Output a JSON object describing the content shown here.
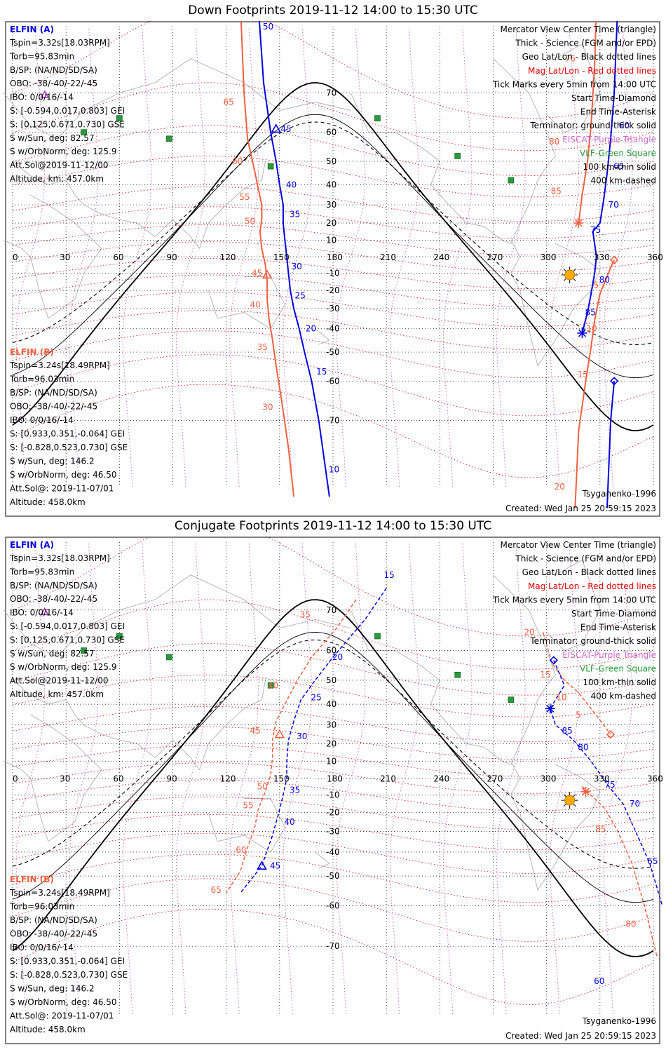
{
  "colors": {
    "elfin_a": "#0000e0",
    "elfin_b": "#f06040",
    "mag_grid": "#e00000",
    "geo_grid": "#000000",
    "meridian": "#cc44cc",
    "station": "#2a9a3a",
    "sun": "#ffaa00",
    "coast": "#b0b0b0"
  },
  "icons": {
    "center_time": "triangle-icon",
    "start_time": "diamond-icon",
    "end_time": "asterisk-icon",
    "eiscat": "purple-triangle-icon",
    "vlf": "green-square-icon",
    "sun": "sun-icon"
  },
  "panels": [
    {
      "id": "down",
      "title": "Down Footprints 2019-11-12 14:00 to 15:30 UTC",
      "elfin_a": {
        "label": "ELFIN (A)",
        "lines": [
          "Tspin=3.32s[18.03RPM]",
          "Torb=95.83min",
          "B/SP: (NA/ND/SD/SA)",
          "OBO: -38/-40/-22/-45",
          "IBO: 0/0/16/-14",
          "S: [-0.594,0.017,0.803] GEI",
          "S: [0.125,0.671,0.730] GSE",
          "S w/Sun, deg: 82.57",
          "S w/OrbNorm, deg: 125.9",
          "Att.Sol@2019-11-12/00",
          "Altitude, km: 457.0km"
        ]
      },
      "elfin_b": {
        "label": "ELFIN (B)",
        "lines": [
          "Tspin=3.24s[18.49RPM]",
          "Torb=96.03min",
          "B/SP: (NA/ND/SD/SA)",
          "OBO: -38/-40/-22/-45",
          "IBO: 0/0/16/-14",
          "S: [0.933,0.351,-0.064] GEI",
          "S: [-0.828,0.523,0.730] GSE",
          "S w/Sun, deg: 146.2",
          "S w/OrbNorm, deg: 46.50",
          "Att.Sol@: 2019-11-07/01",
          "Altitude: 458.0km"
        ]
      },
      "legend": [
        "Mercator View Center Time (triangle)",
        "Thick - Science (FGM and/or EPD)",
        "Geo Lat/Lon - Black dotted lines",
        "Mag Lat/Lon - Red dotted lines",
        "Tick Marks every 5min from 14:00 UTC",
        "Start Time-Diamond",
        "End Time-Asterisk",
        "Terminator: ground-thick solid",
        "EISCAT-Purple Triangle",
        "VLF-Green Square",
        "100 km-thin solid",
        "400 km-dashed"
      ],
      "model": "Tsyganenko-1996",
      "created": "Created: Wed Jan 25 20:59:15 2023",
      "lon_ticks": [
        "0",
        "30",
        "60",
        "90",
        "120",
        "150",
        "180",
        "210",
        "240",
        "270",
        "300",
        "330",
        "360"
      ],
      "lat_ticks": [
        "70",
        "60",
        "50",
        "40",
        "30",
        "20",
        "10",
        "0",
        "-10",
        "-20",
        "-30",
        "-40",
        "-50",
        "-60",
        "-70"
      ],
      "a_ticks": [
        {
          "t": "50",
          "lon": 139,
          "lat": 80
        },
        {
          "t": "45",
          "lon": 149,
          "lat": 61
        },
        {
          "t": "40",
          "lon": 152,
          "lat": 40
        },
        {
          "t": "35",
          "lon": 154,
          "lat": 25
        },
        {
          "t": "30",
          "lon": 155,
          "lat": -6
        },
        {
          "t": "25",
          "lon": 157,
          "lat": -23
        },
        {
          "t": "20",
          "lon": 163,
          "lat": -40
        },
        {
          "t": "15",
          "lon": 169,
          "lat": -57
        },
        {
          "t": "10",
          "lon": 176,
          "lat": -78
        },
        {
          "t": "60",
          "lon": 339,
          "lat": 62
        },
        {
          "t": "65",
          "lon": 336,
          "lat": 48
        },
        {
          "t": "70",
          "lon": 333,
          "lat": 30
        },
        {
          "t": "75",
          "lon": 323,
          "lat": 16
        },
        {
          "t": "80",
          "lon": 328,
          "lat": -14
        },
        {
          "t": "85",
          "lon": 320,
          "lat": -32
        }
      ],
      "b_ticks": [
        {
          "t": "65",
          "lon": 127,
          "lat": 68
        },
        {
          "t": "60",
          "lon": 132,
          "lat": 50
        },
        {
          "t": "55",
          "lon": 136,
          "lat": 34
        },
        {
          "t": "50",
          "lon": 139,
          "lat": 21
        },
        {
          "t": "45",
          "lon": 143,
          "lat": -10
        },
        {
          "t": "40",
          "lon": 142,
          "lat": -28
        },
        {
          "t": "35",
          "lon": 146,
          "lat": -48
        },
        {
          "t": "30",
          "lon": 149,
          "lat": -67
        },
        {
          "t": "75",
          "lon": 319,
          "lat": 76
        },
        {
          "t": "80",
          "lon": 310,
          "lat": 57
        },
        {
          "t": "85",
          "lon": 311,
          "lat": 37
        },
        {
          "t": "5",
          "lon": 335,
          "lat": -17
        },
        {
          "t": "10",
          "lon": 331,
          "lat": -40
        },
        {
          "t": "15",
          "lon": 326,
          "lat": -58
        },
        {
          "t": "20",
          "lon": 313,
          "lat": -80
        }
      ]
    },
    {
      "id": "conjugate",
      "title": "Conjugate Footprints 2019-11-12 14:00 to 15:30 UTC",
      "elfin_a": {
        "label": "ELFIN (A)",
        "lines": [
          "Tspin=3.32s[18.03RPM]",
          "Torb=95.83min",
          "B/SP: (NA/ND/SD/SA)",
          "OBO: -38/-40/-22/-45",
          "IBO: 0/0/16/-14",
          "S: [-0.594,0.017,0.803] GEI",
          "S: [0.125,0.671,0.730] GSE",
          "S w/Sun, deg: 82.57",
          "S w/OrbNorm, deg: 125.9",
          "Att.Sol@2019-11-12/00",
          "Altitude, km: 457.0km"
        ]
      },
      "elfin_b": {
        "label": "ELFIN (B)",
        "lines": [
          "Tspin=3.24s[18.49RPM]",
          "Torb=96.03min",
          "B/SP: (NA/ND/SD/SA)",
          "OBO: -38/-40/-22/-45",
          "IBO: 0/0/16/-14",
          "S: [0.933,0.351,-0.064] GEI",
          "S: [-0.828,0.523,0.730] GSE",
          "S w/Sun, deg: 146.2",
          "S w/OrbNorm, deg: 46.50",
          "Att.Sol@: 2019-11-07/01",
          "Altitude: 458.0km"
        ]
      },
      "legend": [
        "Mercator View Center Time (triangle)",
        "Thick - Science (FGM and/or EPD)",
        "Geo Lat/Lon - Black dotted lines",
        "Mag Lat/Lon - Red dotted lines",
        "Tick Marks every 5min from 14:00 UTC",
        "Start Time-Diamond",
        "End Time-Asterisk",
        "Terminator: ground-thick solid",
        "EISCAT-Purple Triangle",
        "VLF-Green Square",
        "100 km-thin solid",
        "400 km-dashed"
      ],
      "model": "Tsyganenko-1996",
      "created": "Created: Wed Jan 25 20:59:15 2023",
      "lon_ticks": [
        "0",
        "30",
        "60",
        "90",
        "120",
        "150",
        "180",
        "210",
        "240",
        "270",
        "300",
        "330",
        "360"
      ],
      "lat_ticks": [
        "70",
        "60",
        "50",
        "40",
        "30",
        "20",
        "10",
        "0",
        "-10",
        "-20",
        "-30",
        "-40",
        "-50",
        "-60",
        "-70"
      ],
      "a_ticks": [
        {
          "t": "15",
          "lon": 207,
          "lat": 76
        },
        {
          "t": "20",
          "lon": 178,
          "lat": 58
        },
        {
          "t": "25",
          "lon": 166,
          "lat": 43
        },
        {
          "t": "30",
          "lon": 158,
          "lat": 24
        },
        {
          "t": "35",
          "lon": 154,
          "lat": -7
        },
        {
          "t": "40",
          "lon": 151,
          "lat": -25
        },
        {
          "t": "45",
          "lon": 143,
          "lat": -46
        },
        {
          "t": "85",
          "lon": 307,
          "lat": 27
        },
        {
          "t": "80",
          "lon": 316,
          "lat": 18
        },
        {
          "t": "75",
          "lon": 331,
          "lat": -4
        },
        {
          "t": "70",
          "lon": 345,
          "lat": -15
        },
        {
          "t": "65",
          "lon": 355,
          "lat": -44
        },
        {
          "t": "60",
          "lon": 325,
          "lat": -76
        }
      ],
      "b_ticks": [
        {
          "t": "35",
          "lon": 170,
          "lat": 69
        },
        {
          "t": "40",
          "lon": 152,
          "lat": 48
        },
        {
          "t": "45",
          "lon": 142,
          "lat": 27
        },
        {
          "t": "50",
          "lon": 146,
          "lat": -5
        },
        {
          "t": "55",
          "lon": 138,
          "lat": -16
        },
        {
          "t": "60",
          "lon": 134,
          "lat": -39
        },
        {
          "t": "65",
          "lon": 120,
          "lat": -55
        },
        {
          "t": "20",
          "lon": 296,
          "lat": 65
        },
        {
          "t": "15",
          "lon": 305,
          "lat": 52
        },
        {
          "t": "10",
          "lon": 314,
          "lat": 43
        },
        {
          "t": "5",
          "lon": 325,
          "lat": 35
        },
        {
          "t": "85",
          "lon": 336,
          "lat": -29
        },
        {
          "t": "80",
          "lon": 353,
          "lat": -65
        }
      ]
    }
  ]
}
